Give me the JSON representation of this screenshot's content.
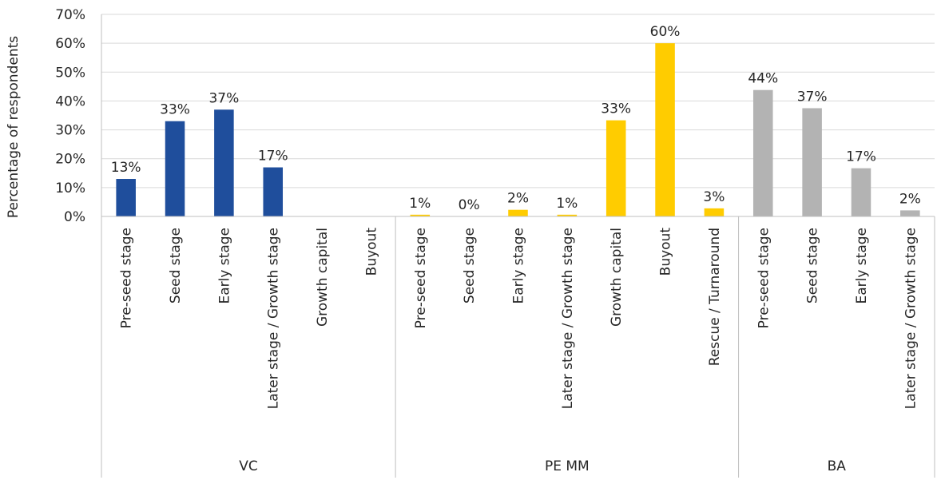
{
  "chart_data": {
    "type": "bar",
    "ylabel": "Percentage  of respondents",
    "ylim": [
      0,
      70
    ],
    "yticks": [
      0,
      10,
      20,
      30,
      40,
      50,
      60,
      70
    ],
    "ytick_labels": [
      "0%",
      "10%",
      "20%",
      "30%",
      "40%",
      "50%",
      "60%",
      "70%"
    ],
    "grid": true,
    "groups": [
      {
        "name": "VC",
        "color": "#1f4e9c",
        "categories": [
          "Pre-seed stage",
          "Seed stage",
          "Early stage",
          "Later stage / Growth stage",
          "Growth capital",
          "Buyout"
        ],
        "values": [
          13,
          33,
          37,
          17,
          null,
          null
        ],
        "labels": [
          "13%",
          "33%",
          "37%",
          "17%",
          "",
          ""
        ]
      },
      {
        "name": "PE MM",
        "color": "#ffcc00",
        "categories": [
          "Pre-seed stage",
          "Seed stage",
          "Early stage",
          "Later stage / Growth stage",
          "Growth capital",
          "Buyout",
          "Rescue / Turnaround"
        ],
        "values": [
          0.6,
          0,
          2.3,
          0.6,
          33.3,
          60,
          2.8
        ],
        "labels": [
          "1%",
          "0%",
          "2%",
          "1%",
          "33%",
          "60%",
          "3%"
        ]
      },
      {
        "name": "BA",
        "color": "#b3b3b3",
        "categories": [
          "Pre-seed stage",
          "Seed stage",
          "Early stage",
          "Later stage / Growth stage"
        ],
        "values": [
          43.8,
          37.5,
          16.7,
          2.1
        ],
        "labels": [
          "44%",
          "37%",
          "17%",
          "2%"
        ]
      }
    ]
  }
}
